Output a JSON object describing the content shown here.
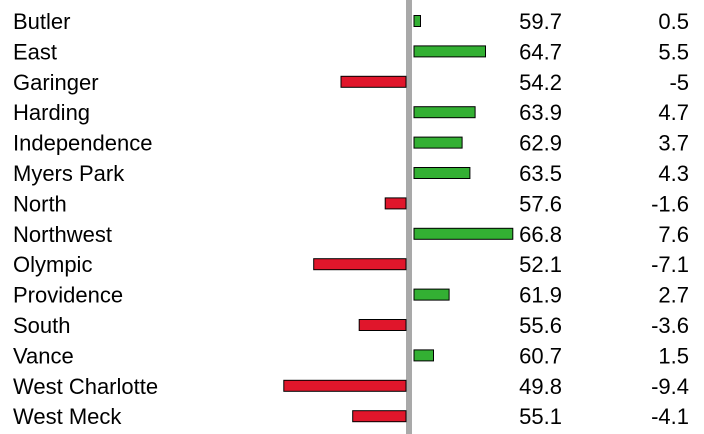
{
  "chart_data": {
    "type": "bar",
    "orientation": "horizontal",
    "grid": false,
    "legend": "none",
    "baseline_color": "#a9a9a9",
    "positive_color": "#33b033",
    "negative_color": "#e0162b",
    "categories": [
      "Butler",
      "East",
      "Garinger",
      "Harding",
      "Independence",
      "Myers Park",
      "North",
      "Northwest",
      "Olympic",
      "Providence",
      "South",
      "Vance",
      "West Charlotte",
      "West Meck"
    ],
    "scores": [
      "59.7",
      "64.7",
      "54.2",
      "63.9",
      "62.9",
      "63.5",
      "57.6",
      "66.8",
      "52.1",
      "61.9",
      "55.6",
      "60.7",
      "49.8",
      "55.1"
    ],
    "differences": [
      "0.5",
      "5.5",
      "-5",
      "4.7",
      "3.7",
      "4.3",
      "-1.6",
      "7.6",
      "-7.1",
      "2.7",
      "-3.6",
      "1.5",
      "-9.4",
      "-4.1"
    ],
    "values": [
      0.5,
      5.5,
      -5,
      4.7,
      3.7,
      4.3,
      -1.6,
      7.6,
      -7.1,
      2.7,
      -3.6,
      1.5,
      -9.4,
      -4.1
    ]
  }
}
